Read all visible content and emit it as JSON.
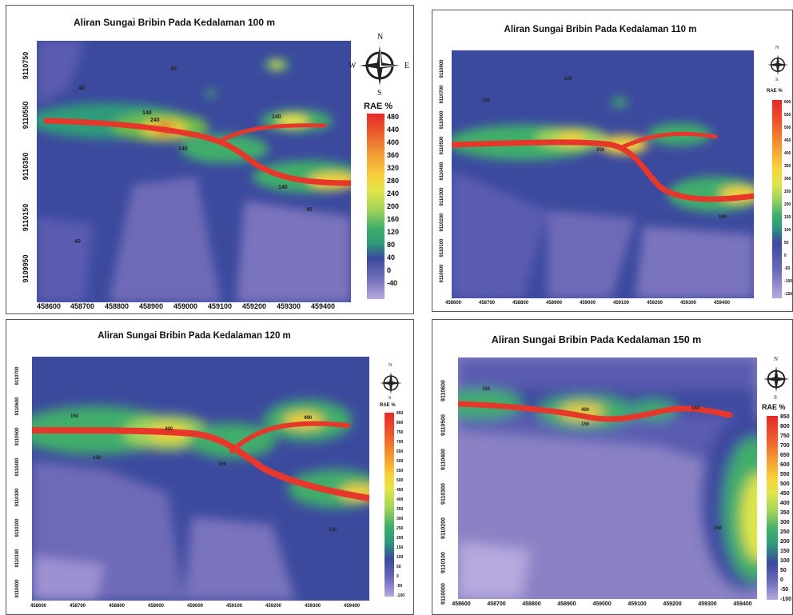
{
  "panels": [
    {
      "id": "p1",
      "title": "Aliran Sungai Bribin Pada Kedalaman 100 m",
      "legend_title": "RAE %",
      "legend_values": [
        "480",
        "440",
        "400",
        "360",
        "320",
        "280",
        "240",
        "200",
        "160",
        "120",
        "80",
        "40",
        "0",
        "-40"
      ],
      "x_ticks": [
        "458600",
        "458700",
        "458800",
        "458900",
        "459000",
        "459100",
        "459200",
        "459300",
        "459400"
      ],
      "y_ticks": [
        "9110750",
        "9110550",
        "9110350",
        "9110150",
        "9109950"
      ],
      "contour_labels": [
        "40",
        "40",
        "40",
        "40",
        "40",
        "40",
        "40",
        "40",
        "140",
        "240",
        "140",
        "140",
        "140",
        "40"
      ],
      "compass": {
        "N": "N",
        "E": "E",
        "S": "S",
        "W": "W"
      }
    },
    {
      "id": "p2",
      "title": "Aliran Sungai Bribin Pada Kedalaman 110 m",
      "legend_title": "RAE %",
      "legend_values": [
        "600",
        "550",
        "500",
        "450",
        "400",
        "350",
        "300",
        "250",
        "200",
        "150",
        "100",
        "50",
        "0",
        "-50",
        "-100",
        "-150"
      ],
      "x_ticks": [
        "458600",
        "458700",
        "458800",
        "458900",
        "459000",
        "459100",
        "459200",
        "459300",
        "459400"
      ],
      "y_ticks": [
        "9110800",
        "9110700",
        "9110600",
        "9110500",
        "9110400",
        "9110300",
        "9110200",
        "9110100",
        "9110000"
      ],
      "contour_labels": [
        "100",
        "100",
        "100",
        "100",
        "250",
        "100"
      ],
      "compass": {
        "N": "N",
        "E": "E",
        "S": "S",
        "W": "W"
      }
    },
    {
      "id": "p3",
      "title": "Aliran Sungai Bribin Pada Kedalaman 120 m",
      "legend_title": "RAE %",
      "legend_values": [
        "850",
        "800",
        "750",
        "700",
        "650",
        "600",
        "550",
        "500",
        "450",
        "400",
        "350",
        "300",
        "250",
        "200",
        "150",
        "100",
        "50",
        "0",
        "-50",
        "-100"
      ],
      "x_ticks": [
        "458600",
        "458700",
        "458800",
        "458900",
        "459000",
        "459100",
        "459200",
        "459300",
        "459400"
      ],
      "y_ticks": [
        "9110700",
        "9110600",
        "9110500",
        "9110400",
        "9110300",
        "9110200",
        "9110100",
        "9110000"
      ],
      "contour_labels": [
        "150",
        "400",
        "150",
        "150",
        "400",
        "150",
        "150",
        "150"
      ],
      "compass": {
        "N": "N",
        "E": "E",
        "S": "S",
        "W": "W"
      }
    },
    {
      "id": "p4",
      "title": "Aliran Sungai Bribin Pada Kedalaman 150 m",
      "legend_title": "RAE %",
      "legend_values": [
        "850",
        "800",
        "750",
        "700",
        "650",
        "600",
        "550",
        "500",
        "450",
        "400",
        "350",
        "300",
        "250",
        "200",
        "150",
        "100",
        "50",
        "0",
        "-50",
        "-100"
      ],
      "x_ticks": [
        "458600",
        "458700",
        "458800",
        "458900",
        "459000",
        "459100",
        "459200",
        "459300",
        "459400"
      ],
      "y_ticks": [
        "9110600",
        "9110500",
        "9110400",
        "9110300",
        "9110200",
        "9110100",
        "9110000"
      ],
      "contour_labels": [
        "150",
        "400",
        "150",
        "150",
        "150"
      ],
      "compass": {
        "N": "N",
        "E": "E",
        "S": "S",
        "W": "W"
      }
    }
  ],
  "colors": {
    "river": "#e8372a",
    "low": "#8a82c4",
    "background": "#3c4a9e",
    "mid": "#3fae6a",
    "high": "#f5e83a",
    "peak": "#e5292a"
  }
}
